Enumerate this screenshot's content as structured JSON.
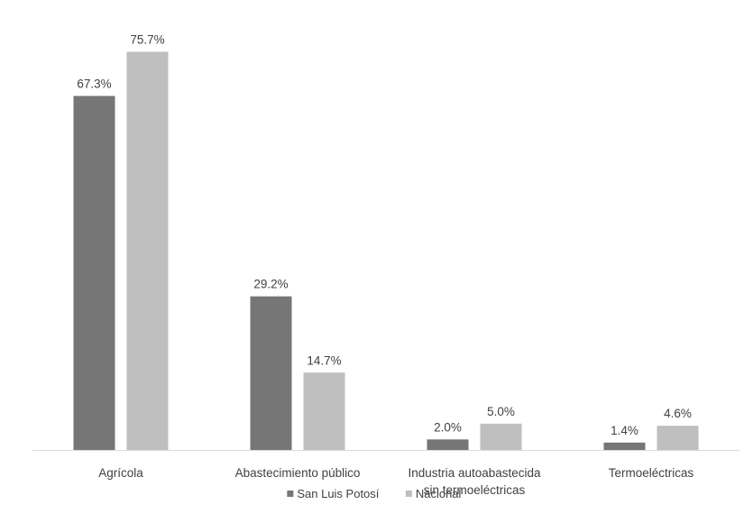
{
  "chart_data": {
    "type": "bar",
    "categories": [
      [
        "Agrícola"
      ],
      [
        "Abastecimiento público"
      ],
      [
        "Industria autoabastecida",
        "sin termoeléctricas"
      ],
      [
        "Termoeléctricas"
      ]
    ],
    "series": [
      {
        "name": "San Luis Potosí",
        "color": "#767676",
        "values": [
          67.3,
          29.2,
          2.0,
          1.4
        ],
        "labels": [
          "67.3%",
          "29.2%",
          "2.0%",
          "1.4%"
        ]
      },
      {
        "name": "Nacional",
        "color": "#bfbfbf",
        "values": [
          75.7,
          14.7,
          5.0,
          4.6
        ],
        "labels": [
          "75.7%",
          "14.7%",
          "5.0%",
          "4.6%"
        ]
      }
    ],
    "ylim": [
      0,
      84
    ],
    "grid": false,
    "legend_position": "bottom"
  }
}
